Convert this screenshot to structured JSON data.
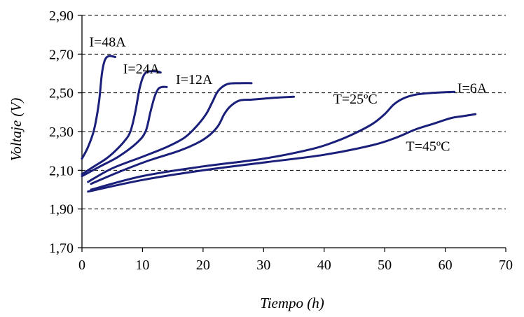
{
  "chart_data": {
    "type": "line",
    "title": "",
    "xlabel": "Tiempo (h)",
    "ylabel": "Voltaje (V)",
    "xlim": [
      0,
      70
    ],
    "ylim": [
      1.7,
      2.9
    ],
    "xticks": [
      "0",
      "10",
      "20",
      "30",
      "40",
      "50",
      "60",
      "70"
    ],
    "yticks": [
      "1,70",
      "1,90",
      "2,10",
      "2,30",
      "2,50",
      "2,70",
      "2,90"
    ],
    "grid": "horizontal dashed",
    "line_color": "#1a1f7a",
    "annotations": [
      {
        "text": "I=48A",
        "x": 1.2,
        "y": 2.74
      },
      {
        "text": "I=24A",
        "x": 6.8,
        "y": 2.6
      },
      {
        "text": "I=12A",
        "x": 15.5,
        "y": 2.545
      },
      {
        "text": "I=6A",
        "x": 62.0,
        "y": 2.5
      },
      {
        "text": "T=25ºC",
        "x": 41.5,
        "y": 2.445
      },
      {
        "text": "T=45ºC",
        "x": 53.5,
        "y": 2.2
      }
    ],
    "series": [
      {
        "x": [
          0,
          1,
          2,
          2.8,
          3.3,
          3.8,
          4.5,
          5.5
        ],
        "y": [
          2.16,
          2.22,
          2.31,
          2.45,
          2.6,
          2.67,
          2.69,
          2.685
        ]
      },
      {
        "x": [
          0,
          2,
          4,
          5.5,
          7,
          8,
          8.8,
          9.5,
          10.2,
          11,
          12.5,
          13
        ],
        "y": [
          2.08,
          2.12,
          2.16,
          2.2,
          2.25,
          2.3,
          2.4,
          2.52,
          2.59,
          2.61,
          2.61,
          2.605
        ]
      },
      {
        "x": [
          0,
          3,
          6,
          9,
          10.5,
          11.3,
          12,
          12.6,
          13.2,
          14
        ],
        "y": [
          2.07,
          2.12,
          2.17,
          2.24,
          2.3,
          2.4,
          2.48,
          2.52,
          2.53,
          2.53
        ]
      },
      {
        "x": [
          1,
          5,
          10,
          14,
          17,
          19,
          20.5,
          21.5,
          22.5,
          24,
          26,
          28
        ],
        "y": [
          2.04,
          2.11,
          2.17,
          2.22,
          2.27,
          2.33,
          2.39,
          2.45,
          2.51,
          2.545,
          2.55,
          2.55
        ]
      },
      {
        "x": [
          1.5,
          6,
          11,
          16,
          19,
          21,
          22.5,
          23.5,
          24.5,
          26,
          28,
          30,
          32,
          35
        ],
        "y": [
          2.03,
          2.09,
          2.15,
          2.2,
          2.24,
          2.28,
          2.33,
          2.39,
          2.43,
          2.46,
          2.465,
          2.47,
          2.475,
          2.48
        ]
      },
      {
        "x": [
          1.5,
          10,
          20,
          30,
          38,
          42,
          45,
          48,
          50,
          51.5,
          53,
          55,
          58,
          61.5
        ],
        "y": [
          2.0,
          2.07,
          2.12,
          2.16,
          2.21,
          2.25,
          2.29,
          2.34,
          2.39,
          2.44,
          2.47,
          2.49,
          2.5,
          2.505
        ]
      },
      {
        "x": [
          1,
          10,
          20,
          30,
          40,
          48,
          52,
          55,
          58,
          61,
          63,
          65
        ],
        "y": [
          1.99,
          2.05,
          2.1,
          2.14,
          2.18,
          2.23,
          2.27,
          2.31,
          2.34,
          2.37,
          2.38,
          2.39
        ]
      }
    ]
  }
}
